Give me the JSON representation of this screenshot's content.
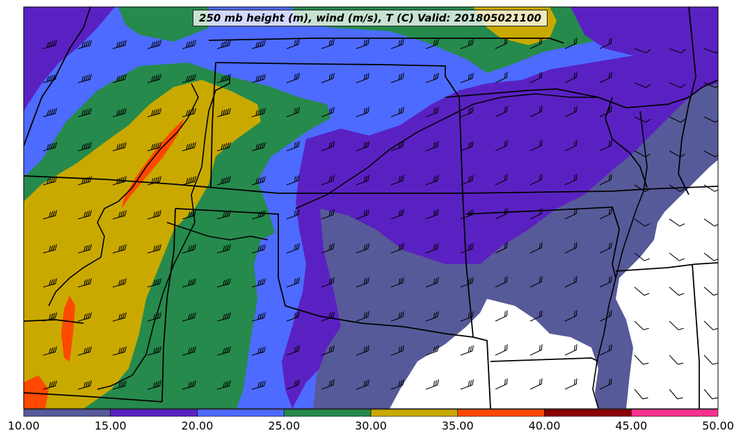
{
  "title": "250 mb height (m), wind (m/s), T (C) Valid: 201805021100",
  "colorbar": {
    "ticks": [
      "10.00",
      "15.00",
      "20.00",
      "25.00",
      "30.00",
      "35.00",
      "40.00",
      "45.00",
      "50.00"
    ],
    "bins": [
      {
        "range": "10-15",
        "color": "#575a99"
      },
      {
        "range": "15-20",
        "color": "#5a21c2"
      },
      {
        "range": "20-25",
        "color": "#4d6bff"
      },
      {
        "range": "25-30",
        "color": "#268a4c"
      },
      {
        "range": "30-35",
        "color": "#c9a900"
      },
      {
        "range": "35-40",
        "color": "#ff4800"
      },
      {
        "range": "40-45",
        "color": "#8b0000"
      },
      {
        "range": "45-50",
        "color": "#f7318f"
      }
    ]
  },
  "colors": {
    "below_min": "#ffffff",
    "borders": "#000000",
    "barbs": "#000000"
  }
}
